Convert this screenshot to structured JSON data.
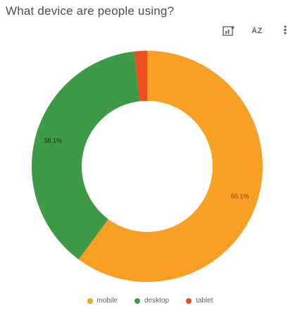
{
  "header": {
    "title": "What device are people using?",
    "chart_type_icon": "chart-type-icon",
    "sort_label": "A̅Z",
    "more_icon": "more-vert-icon"
  },
  "colors": {
    "mobile": "#f7a023",
    "desktop": "#3e9a47",
    "tablet": "#ec4e1c"
  },
  "chart_data": {
    "type": "pie",
    "donut": true,
    "title": "What device are people using?",
    "categories": [
      "mobile",
      "desktop",
      "tablet"
    ],
    "values": [
      60.1,
      38.1,
      1.8
    ],
    "value_labels": [
      "60.1%",
      "38.1%",
      ""
    ],
    "legend": "bottom"
  }
}
